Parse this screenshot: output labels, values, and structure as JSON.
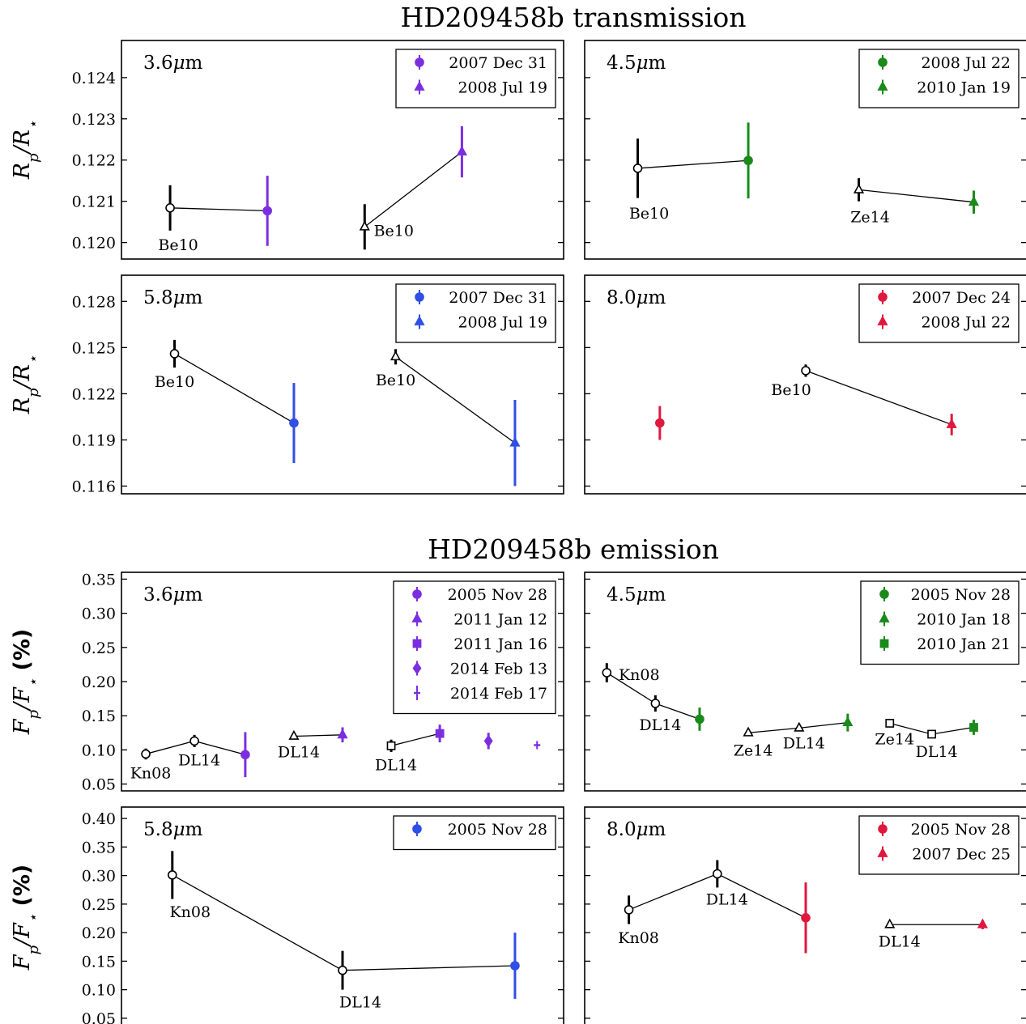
{
  "titles": {
    "transmission": "HD209458b transmission",
    "emission": "HD209458b emission"
  },
  "ylabels": {
    "transmission": "Rp/R⋆",
    "emission": "Fp/F⋆ (%)"
  },
  "colors": {
    "purple": "#7b2ee0",
    "green": "#1a8a1a",
    "blue": "#2f4fe6",
    "red": "#e0183f"
  },
  "chart_data": [
    {
      "type": "scatter",
      "section": "transmission",
      "panel_label": "3.6μm",
      "ylim": [
        0.1196,
        0.1249
      ],
      "yticks": [
        0.12,
        0.121,
        0.122,
        0.123,
        0.124
      ],
      "tick_decimals": 3,
      "show_tick_labels": true,
      "xlim": [
        0,
        10
      ],
      "legend": [
        {
          "label": "2007 Dec 31",
          "marker": "circle",
          "color": "#7b2ee0"
        },
        {
          "label": "2008 Jul 19",
          "marker": "triangle",
          "color": "#7b2ee0"
        }
      ],
      "points": [
        {
          "x": 1.1,
          "y": 0.12084,
          "err": 0.00055,
          "marker": "circle",
          "color": "#000000",
          "fill": "open"
        },
        {
          "x": 3.3,
          "y": 0.12077,
          "err": 0.00085,
          "marker": "circle",
          "color": "#7b2ee0",
          "fill": "filled"
        },
        {
          "x": 5.5,
          "y": 0.12038,
          "err": 0.00055,
          "marker": "triangle",
          "color": "#000000",
          "fill": "open"
        },
        {
          "x": 7.7,
          "y": 0.1222,
          "err": 0.00062,
          "marker": "triangle",
          "color": "#7b2ee0",
          "fill": "filled"
        }
      ],
      "lines": [
        [
          0,
          1
        ],
        [
          2,
          3
        ]
      ],
      "annotations": [
        {
          "point": 0,
          "text": "Be10"
        },
        {
          "point": 2,
          "text": "Be10"
        }
      ]
    },
    {
      "type": "scatter",
      "section": "transmission",
      "panel_label": "4.5μm",
      "ylim": [
        0.1196,
        0.1249
      ],
      "yticks": [
        0.12,
        0.121,
        0.122,
        0.123,
        0.124
      ],
      "tick_decimals": 3,
      "show_tick_labels": false,
      "xlim": [
        0,
        10
      ],
      "legend": [
        {
          "label": "2008 Jul 22",
          "marker": "circle",
          "color": "#1a8a1a"
        },
        {
          "label": "2010 Jan 19",
          "marker": "triangle",
          "color": "#1a8a1a"
        }
      ],
      "points": [
        {
          "x": 1.2,
          "y": 0.1218,
          "err": 0.00072,
          "marker": "circle",
          "color": "#000000",
          "fill": "open"
        },
        {
          "x": 3.7,
          "y": 0.12199,
          "err": 0.00092,
          "marker": "circle",
          "color": "#1a8a1a",
          "fill": "filled"
        },
        {
          "x": 6.2,
          "y": 0.12128,
          "err": 0.00028,
          "marker": "triangle",
          "color": "#000000",
          "fill": "open"
        },
        {
          "x": 8.8,
          "y": 0.12098,
          "err": 0.00028,
          "marker": "triangle",
          "color": "#1a8a1a",
          "fill": "filled"
        }
      ],
      "lines": [
        [
          0,
          1
        ],
        [
          2,
          3
        ]
      ],
      "annotations": [
        {
          "point": 0,
          "text": "Be10"
        },
        {
          "point": 2,
          "text": "Ze14"
        }
      ]
    },
    {
      "type": "scatter",
      "section": "transmission",
      "panel_label": "5.8μm",
      "ylim": [
        0.1155,
        0.1297
      ],
      "yticks": [
        0.116,
        0.119,
        0.122,
        0.125,
        0.128
      ],
      "tick_decimals": 3,
      "show_tick_labels": true,
      "xlim": [
        0,
        10
      ],
      "legend": [
        {
          "label": "2007 Dec 31",
          "marker": "circle",
          "color": "#2f4fe6"
        },
        {
          "label": "2008 Jul 19",
          "marker": "triangle",
          "color": "#2f4fe6"
        }
      ],
      "points": [
        {
          "x": 1.2,
          "y": 0.1246,
          "err": 0.0009,
          "marker": "circle",
          "color": "#000000",
          "fill": "open"
        },
        {
          "x": 3.9,
          "y": 0.1201,
          "err": 0.0026,
          "marker": "circle",
          "color": "#2f4fe6",
          "fill": "filled"
        },
        {
          "x": 6.2,
          "y": 0.1244,
          "err": 0.0005,
          "marker": "triangle",
          "color": "#000000",
          "fill": "open"
        },
        {
          "x": 8.9,
          "y": 0.1188,
          "err": 0.0028,
          "marker": "triangle",
          "color": "#2f4fe6",
          "fill": "filled"
        }
      ],
      "lines": [
        [
          0,
          1
        ],
        [
          2,
          3
        ]
      ],
      "annotations": [
        {
          "point": 0,
          "text": "Be10"
        },
        {
          "point": 2,
          "text": "Be10"
        }
      ]
    },
    {
      "type": "scatter",
      "section": "transmission",
      "panel_label": "8.0μm",
      "ylim": [
        0.1155,
        0.1297
      ],
      "yticks": [
        0.116,
        0.119,
        0.122,
        0.125,
        0.128
      ],
      "tick_decimals": 3,
      "show_tick_labels": false,
      "xlim": [
        0,
        10
      ],
      "legend": [
        {
          "label": "2007 Dec 24",
          "marker": "circle",
          "color": "#e0183f"
        },
        {
          "label": "2008 Jul 22",
          "marker": "triangle",
          "color": "#e0183f"
        }
      ],
      "points": [
        {
          "x": 1.7,
          "y": 0.1201,
          "err": 0.0011,
          "marker": "circle",
          "color": "#e0183f",
          "fill": "filled"
        },
        {
          "x": 5.0,
          "y": 0.1235,
          "err": 0.0004,
          "marker": "circle",
          "color": "#000000",
          "fill": "open"
        },
        {
          "x": 8.3,
          "y": 0.12,
          "err": 0.0007,
          "marker": "triangle",
          "color": "#e0183f",
          "fill": "filled"
        }
      ],
      "lines": [
        [
          1,
          2
        ]
      ],
      "annotations": [
        {
          "point": 1,
          "text": "Be10"
        }
      ]
    },
    {
      "type": "scatter",
      "section": "emission",
      "panel_label": "3.6μm",
      "ylim": [
        0.04,
        0.36
      ],
      "yticks": [
        0.05,
        0.1,
        0.15,
        0.2,
        0.25,
        0.3,
        0.35
      ],
      "tick_decimals": 2,
      "show_tick_labels": true,
      "xlim": [
        0,
        10
      ],
      "legend": [
        {
          "label": "2005 Nov 28",
          "marker": "circle",
          "color": "#7b2ee0"
        },
        {
          "label": "2011 Jan 12",
          "marker": "triangle",
          "color": "#7b2ee0"
        },
        {
          "label": "2011 Jan 16",
          "marker": "square",
          "color": "#7b2ee0"
        },
        {
          "label": "2014 Feb 13",
          "marker": "diamond",
          "color": "#7b2ee0"
        },
        {
          "label": "2014 Feb 17",
          "marker": "vline",
          "color": "#7b2ee0"
        }
      ],
      "points": [
        {
          "x": 0.55,
          "y": 0.094,
          "err": 0.008,
          "marker": "circle",
          "color": "#000000",
          "fill": "open"
        },
        {
          "x": 1.65,
          "y": 0.113,
          "err": 0.009,
          "marker": "circle",
          "color": "#000000",
          "fill": "open"
        },
        {
          "x": 2.8,
          "y": 0.093,
          "err": 0.033,
          "marker": "circle",
          "color": "#7b2ee0",
          "fill": "filled"
        },
        {
          "x": 3.9,
          "y": 0.12,
          "err": 0.004,
          "marker": "triangle",
          "color": "#000000",
          "fill": "open"
        },
        {
          "x": 5.0,
          "y": 0.122,
          "err": 0.011,
          "marker": "triangle",
          "color": "#7b2ee0",
          "fill": "filled"
        },
        {
          "x": 6.1,
          "y": 0.106,
          "err": 0.009,
          "marker": "square",
          "color": "#000000",
          "fill": "open"
        },
        {
          "x": 7.2,
          "y": 0.124,
          "err": 0.013,
          "marker": "square",
          "color": "#7b2ee0",
          "fill": "filled"
        },
        {
          "x": 8.3,
          "y": 0.113,
          "err": 0.012,
          "marker": "diamond",
          "color": "#7b2ee0",
          "fill": "filled"
        },
        {
          "x": 9.4,
          "y": 0.107,
          "err": 0.006,
          "marker": "vline",
          "color": "#7b2ee0",
          "fill": "filled"
        }
      ],
      "lines": [
        [
          0,
          1
        ],
        [
          1,
          2
        ],
        [
          3,
          4
        ],
        [
          5,
          6
        ]
      ],
      "annotations": [
        {
          "point": 0,
          "text": "Kn08"
        },
        {
          "point": 1,
          "text": "DL14"
        },
        {
          "point": 3,
          "text": "DL14"
        },
        {
          "point": 5,
          "text": "DL14"
        }
      ]
    },
    {
      "type": "scatter",
      "section": "emission",
      "panel_label": "4.5μm",
      "ylim": [
        0.04,
        0.36
      ],
      "yticks": [
        0.05,
        0.1,
        0.15,
        0.2,
        0.25,
        0.3,
        0.35
      ],
      "tick_decimals": 2,
      "show_tick_labels": false,
      "xlim": [
        0,
        10
      ],
      "legend": [
        {
          "label": "2005 Nov 28",
          "marker": "circle",
          "color": "#1a8a1a"
        },
        {
          "label": "2010 Jan 18",
          "marker": "triangle",
          "color": "#1a8a1a"
        },
        {
          "label": "2010 Jan 21",
          "marker": "square",
          "color": "#1a8a1a"
        }
      ],
      "points": [
        {
          "x": 0.5,
          "y": 0.213,
          "err": 0.014,
          "marker": "circle",
          "color": "#000000",
          "fill": "open"
        },
        {
          "x": 1.6,
          "y": 0.168,
          "err": 0.012,
          "marker": "circle",
          "color": "#000000",
          "fill": "open"
        },
        {
          "x": 2.6,
          "y": 0.145,
          "err": 0.017,
          "marker": "circle",
          "color": "#1a8a1a",
          "fill": "filled"
        },
        {
          "x": 3.7,
          "y": 0.125,
          "err": 0.004,
          "marker": "triangle",
          "color": "#000000",
          "fill": "open"
        },
        {
          "x": 4.85,
          "y": 0.132,
          "err": 0.004,
          "marker": "triangle",
          "color": "#000000",
          "fill": "open"
        },
        {
          "x": 5.95,
          "y": 0.14,
          "err": 0.013,
          "marker": "triangle",
          "color": "#1a8a1a",
          "fill": "filled"
        },
        {
          "x": 6.9,
          "y": 0.139,
          "err": 0.004,
          "marker": "square",
          "color": "#000000",
          "fill": "open"
        },
        {
          "x": 7.85,
          "y": 0.123,
          "err": 0.004,
          "marker": "square",
          "color": "#000000",
          "fill": "open"
        },
        {
          "x": 8.8,
          "y": 0.133,
          "err": 0.011,
          "marker": "square",
          "color": "#1a8a1a",
          "fill": "filled"
        }
      ],
      "lines": [
        [
          0,
          1
        ],
        [
          1,
          2
        ],
        [
          3,
          4
        ],
        [
          4,
          5
        ],
        [
          6,
          7
        ],
        [
          7,
          8
        ]
      ],
      "annotations": [
        {
          "point": 0,
          "text": "Kn08"
        },
        {
          "point": 1,
          "text": "DL14"
        },
        {
          "point": 3,
          "text": "Ze14"
        },
        {
          "point": 4,
          "text": "DL14"
        },
        {
          "point": 6,
          "text": "Ze14"
        },
        {
          "point": 7,
          "text": "DL14"
        }
      ]
    },
    {
      "type": "scatter",
      "section": "emission",
      "panel_label": "5.8μm",
      "ylim": [
        0.03,
        0.42
      ],
      "yticks": [
        0.05,
        0.1,
        0.15,
        0.2,
        0.25,
        0.3,
        0.35,
        0.4
      ],
      "tick_decimals": 2,
      "show_tick_labels": true,
      "xlim": [
        0,
        10
      ],
      "legend": [
        {
          "label": "2005 Nov 28",
          "marker": "circle",
          "color": "#2f4fe6"
        }
      ],
      "points": [
        {
          "x": 1.15,
          "y": 0.301,
          "err": 0.042,
          "marker": "circle",
          "color": "#000000",
          "fill": "open"
        },
        {
          "x": 5.0,
          "y": 0.134,
          "err": 0.034,
          "marker": "circle",
          "color": "#000000",
          "fill": "open"
        },
        {
          "x": 8.9,
          "y": 0.142,
          "err": 0.058,
          "marker": "circle",
          "color": "#2f4fe6",
          "fill": "filled"
        }
      ],
      "lines": [
        [
          0,
          1
        ],
        [
          1,
          2
        ]
      ],
      "annotations": [
        {
          "point": 0,
          "text": "Kn08"
        },
        {
          "point": 1,
          "text": "DL14"
        }
      ]
    },
    {
      "type": "scatter",
      "section": "emission",
      "panel_label": "8.0μm",
      "ylim": [
        0.03,
        0.42
      ],
      "yticks": [
        0.05,
        0.1,
        0.15,
        0.2,
        0.25,
        0.3,
        0.35,
        0.4
      ],
      "tick_decimals": 2,
      "show_tick_labels": false,
      "xlim": [
        0,
        10
      ],
      "legend": [
        {
          "label": "2005 Nov 28",
          "marker": "circle",
          "color": "#e0183f"
        },
        {
          "label": "2007 Dec 25",
          "marker": "triangle",
          "color": "#e0183f"
        }
      ],
      "points": [
        {
          "x": 1.0,
          "y": 0.24,
          "err": 0.025,
          "marker": "circle",
          "color": "#000000",
          "fill": "open"
        },
        {
          "x": 3.0,
          "y": 0.303,
          "err": 0.024,
          "marker": "circle",
          "color": "#000000",
          "fill": "open"
        },
        {
          "x": 5.0,
          "y": 0.226,
          "err": 0.062,
          "marker": "circle",
          "color": "#e0183f",
          "fill": "filled"
        },
        {
          "x": 6.9,
          "y": 0.214,
          "err": 0.004,
          "marker": "triangle",
          "color": "#000000",
          "fill": "open"
        },
        {
          "x": 9.0,
          "y": 0.214,
          "err": 0.008,
          "marker": "triangle",
          "color": "#e0183f",
          "fill": "filled"
        }
      ],
      "lines": [
        [
          0,
          1
        ],
        [
          1,
          2
        ],
        [
          3,
          4
        ]
      ],
      "annotations": [
        {
          "point": 0,
          "text": "Kn08"
        },
        {
          "point": 1,
          "text": "DL14"
        },
        {
          "point": 3,
          "text": "DL14"
        }
      ]
    }
  ]
}
